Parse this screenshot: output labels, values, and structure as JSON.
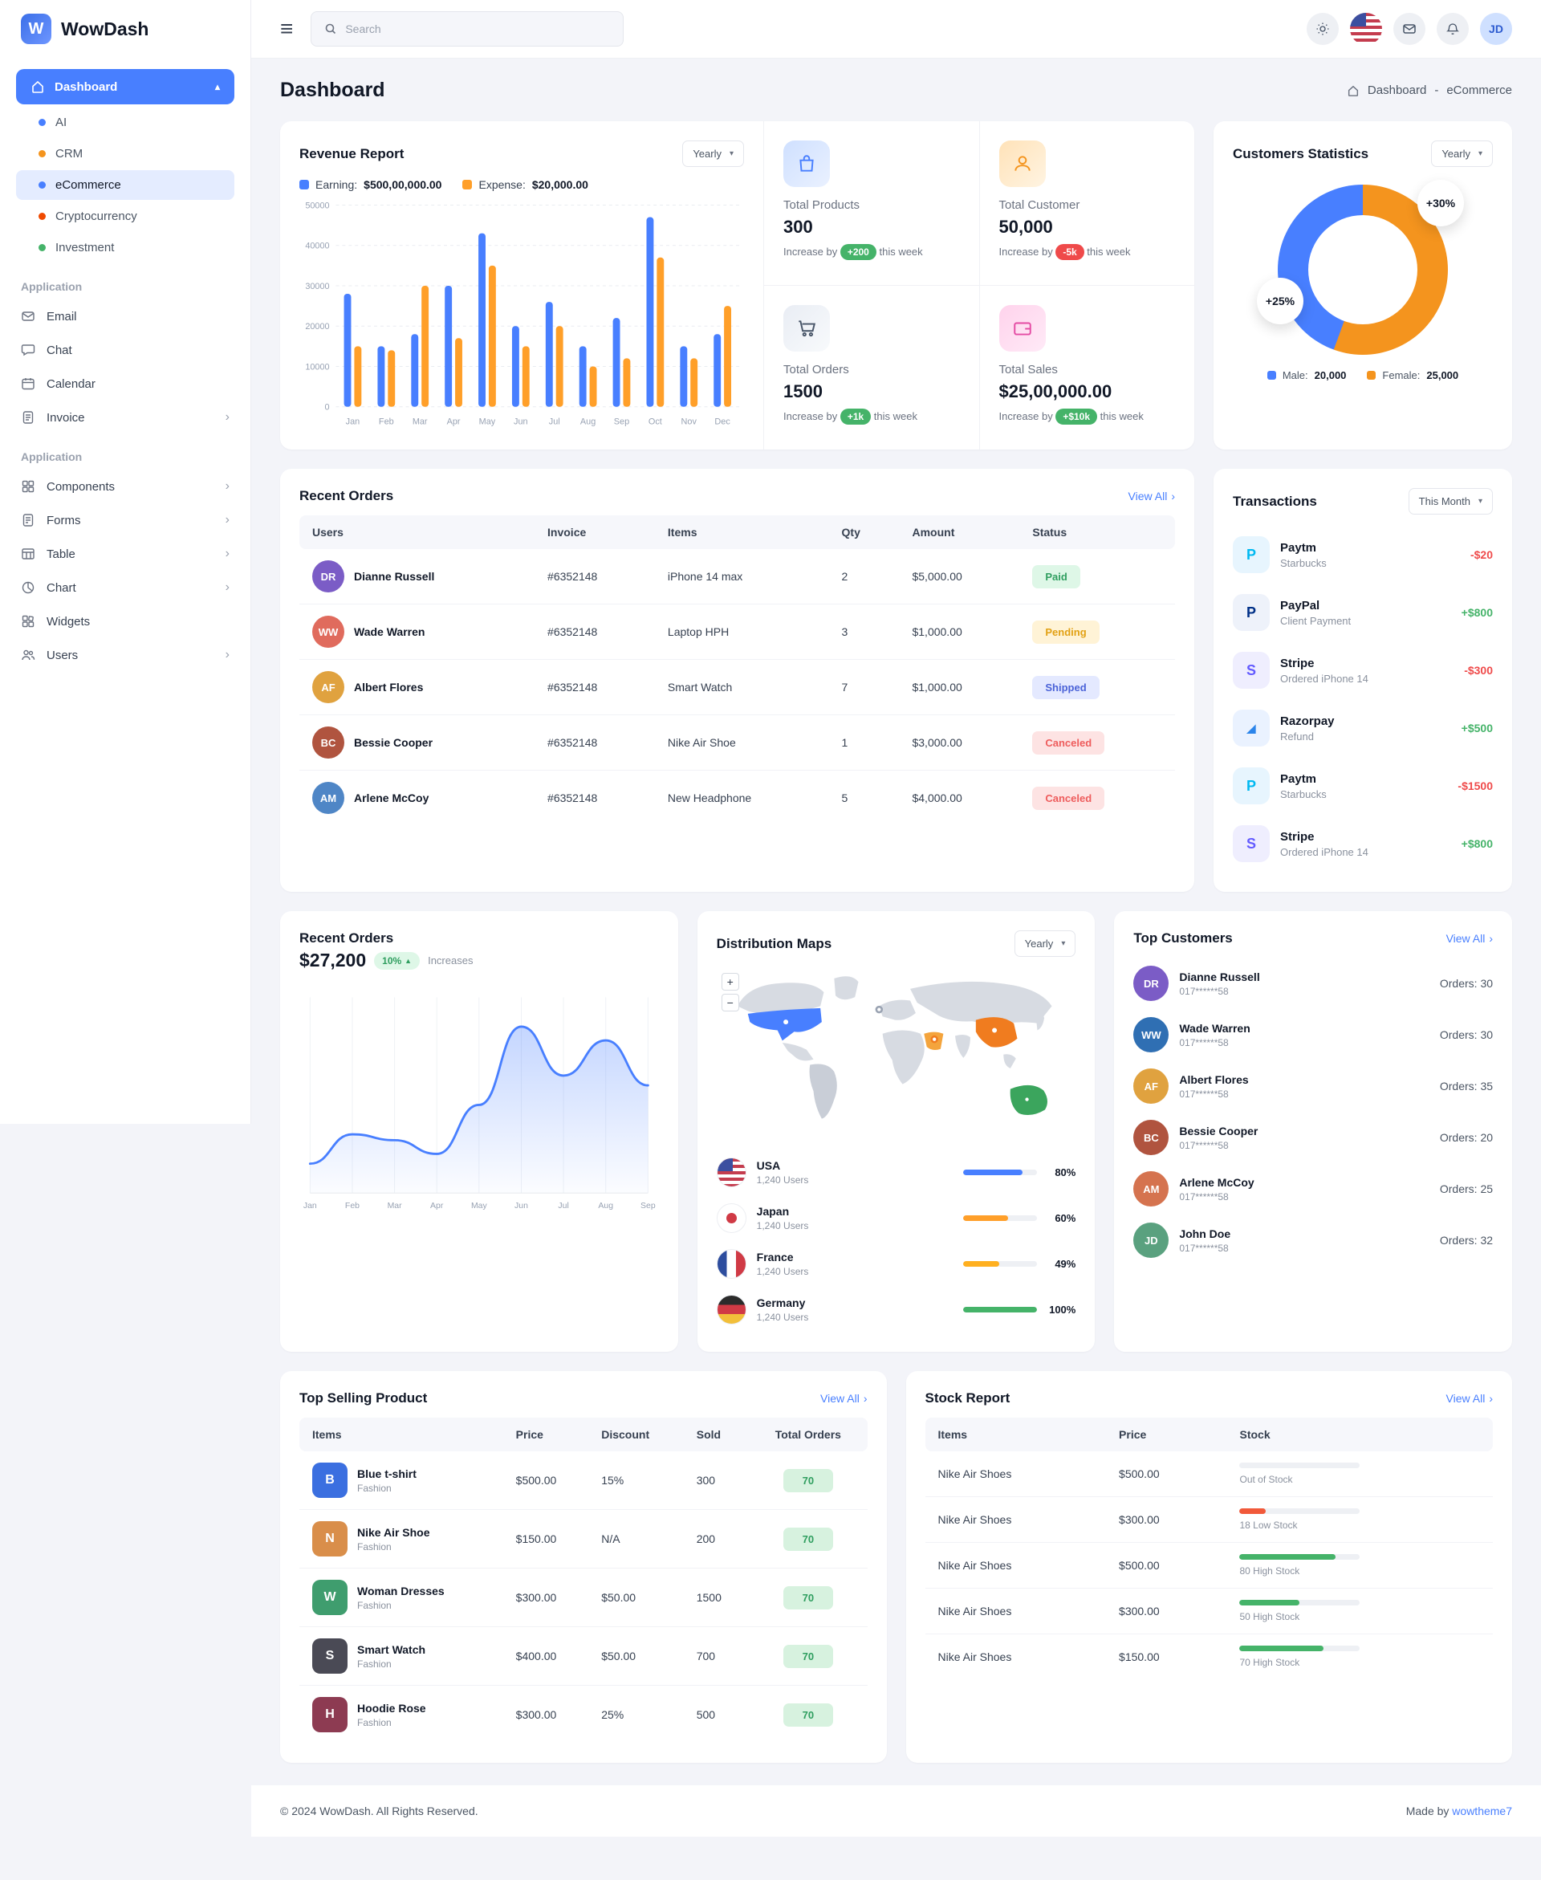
{
  "brand": {
    "name": "WowDash"
  },
  "topbar": {
    "search_placeholder": "Search"
  },
  "icons": {
    "hamburger": "≡",
    "chevron_up": "▴",
    "chevron_right": "›",
    "caret_down": "▾",
    "caret_up": "▲"
  },
  "sidebar": {
    "dashboard_label": "Dashboard",
    "dashboard_items": [
      {
        "label": "AI",
        "color": "#487fff",
        "active": false
      },
      {
        "label": "CRM",
        "color": "#f4941e",
        "active": false
      },
      {
        "label": "eCommerce",
        "color": "#487fff",
        "active": true
      },
      {
        "label": "Cryptocurrency",
        "color": "#ef4a00",
        "active": false
      },
      {
        "label": "Investment",
        "color": "#45b369",
        "active": false
      }
    ],
    "sections": [
      {
        "title": "Application",
        "items": [
          {
            "label": "Email",
            "icon": "email-icon",
            "chevron": false
          },
          {
            "label": "Chat",
            "icon": "chat-icon",
            "chevron": false
          },
          {
            "label": "Calendar",
            "icon": "calendar-icon",
            "chevron": false
          },
          {
            "label": "Invoice",
            "icon": "invoice-icon",
            "chevron": true
          }
        ]
      },
      {
        "title": "Application",
        "items": [
          {
            "label": "Components",
            "icon": "components-icon",
            "chevron": true
          },
          {
            "label": "Forms",
            "icon": "forms-icon",
            "chevron": true
          },
          {
            "label": "Table",
            "icon": "table-icon",
            "chevron": true
          },
          {
            "label": "Chart",
            "icon": "chart-icon",
            "chevron": true
          },
          {
            "label": "Widgets",
            "icon": "widgets-icon",
            "chevron": false
          },
          {
            "label": "Users",
            "icon": "users-icon",
            "chevron": true
          }
        ]
      }
    ]
  },
  "page": {
    "title": "Dashboard",
    "breadcrumb": {
      "home": "Dashboard",
      "sep": "-",
      "current": "eCommerce"
    }
  },
  "revenue": {
    "title": "Revenue Report",
    "period": "Yearly",
    "legend": [
      {
        "label": "Earning:",
        "value": "$500,00,000.00",
        "color": "#487fff"
      },
      {
        "label": "Expense:",
        "value": "$20,000.00",
        "color": "#ff9f29"
      }
    ]
  },
  "stats": [
    {
      "label": "Total Products",
      "value": "300",
      "prefix": "Increase by",
      "delta": "+200",
      "suffix": "this week",
      "trend": "up",
      "icon": "bag-icon",
      "theme": "blue"
    },
    {
      "label": "Total Customer",
      "value": "50,000",
      "prefix": "Increase by",
      "delta": "-5k",
      "suffix": "this week",
      "trend": "down",
      "icon": "user-icon",
      "theme": "orange"
    },
    {
      "label": "Total Orders",
      "value": "1500",
      "prefix": "Increase by",
      "delta": "+1k",
      "suffix": "this week",
      "trend": "up",
      "icon": "cart-icon",
      "theme": "light"
    },
    {
      "label": "Total Sales",
      "value": "$25,00,000.00",
      "prefix": "Increase by",
      "delta": "+$10k",
      "suffix": "this week",
      "trend": "up",
      "icon": "wallet-icon",
      "theme": "pink"
    }
  ],
  "customers_stats": {
    "title": "Customers Statistics",
    "period": "Yearly",
    "badge_top": "+30%",
    "badge_left": "+25%",
    "legend": [
      {
        "label": "Male:",
        "value": "20,000",
        "color": "#487fff"
      },
      {
        "label": "Female:",
        "value": "25,000",
        "color": "#f4941e"
      }
    ]
  },
  "orders": {
    "title": "Recent Orders",
    "view_all": "View All",
    "headers": [
      "Users",
      "Invoice",
      "Items",
      "Qty",
      "Amount",
      "Status"
    ],
    "rows": [
      {
        "user": "Dianne Russell",
        "invoice": "#6352148",
        "item": "iPhone 14 max",
        "qty": "2",
        "amount": "$5,000.00",
        "status": "Paid",
        "avatar_color": "#7b5cc6"
      },
      {
        "user": "Wade Warren",
        "invoice": "#6352148",
        "item": "Laptop HPH",
        "qty": "3",
        "amount": "$1,000.00",
        "status": "Pending",
        "avatar_color": "#e06b5d"
      },
      {
        "user": "Albert Flores",
        "invoice": "#6352148",
        "item": "Smart Watch",
        "qty": "7",
        "amount": "$1,000.00",
        "status": "Shipped",
        "avatar_color": "#e0a23f"
      },
      {
        "user": "Bessie Cooper",
        "invoice": "#6352148",
        "item": "Nike Air Shoe",
        "qty": "1",
        "amount": "$3,000.00",
        "status": "Canceled",
        "avatar_color": "#b0543f"
      },
      {
        "user": "Arlene McCoy",
        "invoice": "#6352148",
        "item": "New Headphone",
        "qty": "5",
        "amount": "$4,000.00",
        "status": "Canceled",
        "avatar_color": "#4f86c6"
      }
    ]
  },
  "transactions": {
    "title": "Transactions",
    "period": "This Month",
    "items": [
      {
        "name": "Paytm",
        "desc": "Starbucks",
        "amount": "-$20",
        "dir": "neg",
        "brand": "paytm"
      },
      {
        "name": "PayPal",
        "desc": "Client Payment",
        "amount": "+$800",
        "dir": "pos",
        "brand": "paypal"
      },
      {
        "name": "Stripe",
        "desc": "Ordered iPhone 14",
        "amount": "-$300",
        "dir": "neg",
        "brand": "stripe"
      },
      {
        "name": "Razorpay",
        "desc": "Refund",
        "amount": "+$500",
        "dir": "pos",
        "brand": "razorpay"
      },
      {
        "name": "Paytm",
        "desc": "Starbucks",
        "amount": "-$1500",
        "dir": "neg",
        "brand": "paytm"
      },
      {
        "name": "Stripe",
        "desc": "Ordered iPhone 14",
        "amount": "+$800",
        "dir": "pos",
        "brand": "stripe"
      }
    ]
  },
  "orders_chart": {
    "title": "Recent Orders",
    "amount": "$27,200",
    "badge": "10%",
    "note": "Increases"
  },
  "distribution": {
    "title": "Distribution Maps",
    "period": "Yearly",
    "zoom_in": "+",
    "zoom_out": "−",
    "countries": [
      {
        "name": "USA",
        "users": "1,240 Users",
        "percent": 80,
        "percent_label": "80%",
        "color": "#487fff",
        "flag": "usa"
      },
      {
        "name": "Japan",
        "users": "1,240 Users",
        "percent": 60,
        "percent_label": "60%",
        "color": "#ff9f29",
        "flag": "japan"
      },
      {
        "name": "France",
        "users": "1,240 Users",
        "percent": 49,
        "percent_label": "49%",
        "color": "#ffb020",
        "flag": "france"
      },
      {
        "name": "Germany",
        "users": "1,240 Users",
        "percent": 100,
        "percent_label": "100%",
        "color": "#45b369",
        "flag": "germany"
      }
    ]
  },
  "top_customers": {
    "title": "Top Customers",
    "view_all": "View All",
    "items": [
      {
        "name": "Dianne Russell",
        "phone": "017******58",
        "orders": "Orders: 30",
        "avatar_color": "#7b5cc6"
      },
      {
        "name": "Wade Warren",
        "phone": "017******58",
        "orders": "Orders: 30",
        "avatar_color": "#2f6fb3"
      },
      {
        "name": "Albert Flores",
        "phone": "017******58",
        "orders": "Orders: 35",
        "avatar_color": "#e0a23f"
      },
      {
        "name": "Bessie Cooper",
        "phone": "017******58",
        "orders": "Orders: 20",
        "avatar_color": "#b0543f"
      },
      {
        "name": "Arlene McCoy",
        "phone": "017******58",
        "orders": "Orders: 25",
        "avatar_color": "#d5734f"
      },
      {
        "name": "John Doe",
        "phone": "017******58",
        "orders": "Orders: 32",
        "avatar_color": "#5aa17f"
      }
    ]
  },
  "top_selling": {
    "title": "Top Selling Product",
    "view_all": "View All",
    "headers": [
      "Items",
      "Price",
      "Discount",
      "Sold",
      "Total Orders"
    ],
    "rows": [
      {
        "name": "Blue t-shirt",
        "category": "Fashion",
        "price": "$500.00",
        "discount": "15%",
        "sold": "300",
        "orders": "70",
        "color": "#3b6fe0"
      },
      {
        "name": "Nike Air Shoe",
        "category": "Fashion",
        "price": "$150.00",
        "discount": "N/A",
        "sold": "200",
        "orders": "70",
        "color": "#d98e4a"
      },
      {
        "name": "Woman Dresses",
        "category": "Fashion",
        "price": "$300.00",
        "discount": "$50.00",
        "sold": "1500",
        "orders": "70",
        "color": "#3f9d6e"
      },
      {
        "name": "Smart Watch",
        "category": "Fashion",
        "price": "$400.00",
        "discount": "$50.00",
        "sold": "700",
        "orders": "70",
        "color": "#4a4a55"
      },
      {
        "name": "Hoodie Rose",
        "category": "Fashion",
        "price": "$300.00",
        "discount": "25%",
        "sold": "500",
        "orders": "70",
        "color": "#8d3b52"
      }
    ]
  },
  "stock_report": {
    "title": "Stock Report",
    "view_all": "View All",
    "headers": [
      "Items",
      "Price",
      "Stock"
    ],
    "rows": [
      {
        "item": "Nike Air Shoes",
        "price": "$500.00",
        "label": "Out of Stock",
        "percent": 0,
        "color": "#cfd4dc"
      },
      {
        "item": "Nike Air Shoes",
        "price": "$300.00",
        "label": "18 Low Stock",
        "percent": 22,
        "color": "#f1593a"
      },
      {
        "item": "Nike Air Shoes",
        "price": "$500.00",
        "label": "80 High Stock",
        "percent": 80,
        "color": "#45b369"
      },
      {
        "item": "Nike Air Shoes",
        "price": "$300.00",
        "label": "50 High Stock",
        "percent": 50,
        "color": "#45b369"
      },
      {
        "item": "Nike Air Shoes",
        "price": "$150.00",
        "label": "70 High Stock",
        "percent": 70,
        "color": "#45b369"
      }
    ]
  },
  "footer": {
    "copyright": "© 2024 WowDash. All Rights Reserved.",
    "made_by": "Made by",
    "author": "wowtheme7"
  },
  "colors": {
    "primary": "#487fff",
    "success": "#45b369",
    "warning": "#ff9f29",
    "danger": "#ef4a4a"
  },
  "chart_data": [
    {
      "type": "bar",
      "title": "Revenue Report",
      "categories": [
        "Jan",
        "Feb",
        "Mar",
        "Apr",
        "May",
        "Jun",
        "Jul",
        "Aug",
        "Sep",
        "Oct",
        "Nov",
        "Dec"
      ],
      "series": [
        {
          "name": "Earning",
          "color": "#487fff",
          "values": [
            28000,
            15000,
            18000,
            30000,
            43000,
            20000,
            26000,
            15000,
            22000,
            47000,
            15000,
            18000
          ]
        },
        {
          "name": "Expense",
          "color": "#ff9f29",
          "values": [
            15000,
            14000,
            30000,
            17000,
            35000,
            15000,
            20000,
            10000,
            12000,
            37000,
            12000,
            25000
          ]
        }
      ],
      "ylim": [
        0,
        50000
      ],
      "yticks": [
        0,
        10000,
        20000,
        30000,
        40000,
        50000
      ],
      "grid": true,
      "legend_position": "top"
    },
    {
      "type": "pie",
      "title": "Customers Statistics",
      "labels": [
        "Male",
        "Female"
      ],
      "values": [
        20000,
        25000
      ],
      "colors": [
        "#487fff",
        "#f4941e"
      ],
      "donut": true,
      "annotations": [
        "+30%",
        "+25%"
      ]
    },
    {
      "type": "area",
      "title": "Recent Orders",
      "categories": [
        "Jan",
        "Feb",
        "Mar",
        "Apr",
        "May",
        "Jun",
        "Jul",
        "Aug",
        "Sep"
      ],
      "values": [
        15,
        30,
        27,
        20,
        45,
        85,
        60,
        78,
        55
      ],
      "ylim": [
        0,
        100
      ],
      "color": "#487fff",
      "grid": true
    }
  ]
}
